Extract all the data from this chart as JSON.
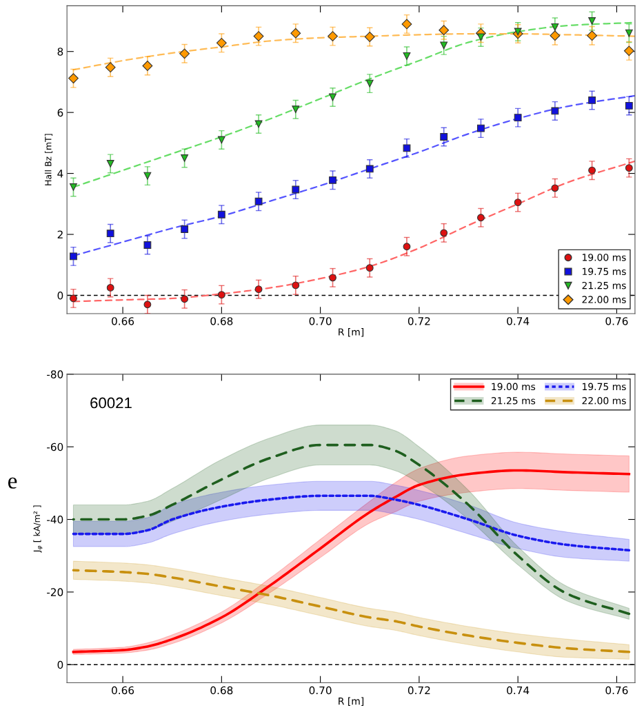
{
  "chart_data": [
    {
      "type": "scatter",
      "xlabel": "R [m]",
      "ylabel": "Hall Bz [mT]",
      "xlim": [
        0.6487,
        0.7637
      ],
      "xticks": [
        {
          "value": 0.66,
          "label": "0.66"
        },
        {
          "value": 0.68,
          "label": "0.68"
        },
        {
          "value": 0.7,
          "label": "0.70"
        },
        {
          "value": 0.72,
          "label": "0.72"
        },
        {
          "value": 0.74,
          "label": "0.74"
        },
        {
          "value": 0.76,
          "label": "0.76"
        }
      ],
      "ylim": [
        -0.6,
        9.5
      ],
      "yticks": [
        0,
        2,
        4,
        6,
        8
      ],
      "legend": "bottom right",
      "grid": false,
      "x": [
        0.65,
        0.6575,
        0.665,
        0.6725,
        0.68,
        0.6875,
        0.695,
        0.7025,
        0.71,
        0.7175,
        0.725,
        0.7325,
        0.74,
        0.7475,
        0.755,
        0.7625
      ],
      "ref_lines": [
        {
          "axis": "y",
          "value": 0,
          "label": null,
          "color": "#000000",
          "line_style": "dashed"
        }
      ],
      "series": [
        {
          "name": "19.00 ms",
          "color": "#dd1111",
          "marker": "circle",
          "values": [
            -0.1,
            0.25,
            -0.3,
            -0.12,
            0.02,
            0.2,
            0.33,
            0.58,
            0.9,
            1.6,
            2.05,
            2.55,
            3.05,
            3.52,
            4.1,
            4.18
          ],
          "errors": [
            0.3,
            0.3,
            0.3,
            0.3,
            0.3,
            0.3,
            0.3,
            0.3,
            0.3,
            0.3,
            0.3,
            0.3,
            0.3,
            0.3,
            0.3,
            0.3
          ]
        },
        {
          "name": "19.75 ms",
          "color": "#1111dd",
          "marker": "square",
          "values": [
            1.28,
            2.03,
            1.65,
            2.17,
            2.65,
            3.08,
            3.47,
            3.78,
            4.15,
            4.83,
            5.2,
            5.48,
            5.83,
            6.05,
            6.4,
            6.22
          ],
          "errors": [
            0.3,
            0.3,
            0.3,
            0.3,
            0.3,
            0.3,
            0.3,
            0.3,
            0.3,
            0.3,
            0.3,
            0.3,
            0.3,
            0.3,
            0.3,
            0.3
          ]
        },
        {
          "name": "21.25 ms",
          "color": "#22bb22",
          "marker": "triangle",
          "values": [
            3.55,
            4.32,
            3.92,
            4.5,
            5.1,
            5.62,
            6.1,
            6.5,
            6.95,
            7.85,
            8.2,
            8.47,
            8.65,
            8.8,
            9.0,
            8.6
          ],
          "errors": [
            0.3,
            0.3,
            0.3,
            0.3,
            0.3,
            0.3,
            0.3,
            0.3,
            0.3,
            0.3,
            0.3,
            0.3,
            0.3,
            0.3,
            0.3,
            0.3
          ]
        },
        {
          "name": "22.00 ms",
          "color": "#ff9900",
          "marker": "diamond",
          "values": [
            7.12,
            7.48,
            7.53,
            7.93,
            8.28,
            8.5,
            8.6,
            8.5,
            8.48,
            8.9,
            8.7,
            8.6,
            8.58,
            8.52,
            8.52,
            8.02
          ],
          "errors": [
            0.3,
            0.3,
            0.3,
            0.3,
            0.3,
            0.3,
            0.3,
            0.3,
            0.3,
            0.3,
            0.3,
            0.3,
            0.3,
            0.3,
            0.3,
            0.3
          ]
        },
        {
          "type": "line",
          "color": "#ff6666",
          "line_style": "dashed",
          "x": [
            0.65,
            0.66,
            0.67,
            0.68,
            0.69,
            0.7,
            0.71,
            0.72,
            0.73,
            0.74,
            0.75,
            0.7637
          ],
          "values": [
            -0.2,
            -0.15,
            -0.1,
            0.05,
            0.25,
            0.55,
            0.95,
            1.55,
            2.3,
            3.0,
            3.7,
            4.4
          ]
        },
        {
          "type": "line",
          "color": "#5555ff",
          "line_style": "dashed",
          "x": [
            0.65,
            0.66,
            0.67,
            0.68,
            0.69,
            0.7,
            0.71,
            0.72,
            0.73,
            0.74,
            0.75,
            0.7637
          ],
          "values": [
            1.3,
            1.75,
            2.2,
            2.6,
            3.1,
            3.6,
            4.15,
            4.7,
            5.3,
            5.8,
            6.2,
            6.55
          ]
        },
        {
          "type": "line",
          "color": "#66dd66",
          "line_style": "dashed",
          "x": [
            0.65,
            0.66,
            0.67,
            0.68,
            0.69,
            0.7,
            0.71,
            0.72,
            0.73,
            0.74,
            0.75,
            0.7637
          ],
          "values": [
            3.55,
            4.1,
            4.65,
            5.2,
            5.8,
            6.45,
            7.1,
            7.7,
            8.3,
            8.65,
            8.85,
            8.95
          ]
        },
        {
          "type": "line",
          "color": "#ffbb55",
          "line_style": "dashed",
          "x": [
            0.65,
            0.66,
            0.67,
            0.68,
            0.69,
            0.7,
            0.71,
            0.72,
            0.73,
            0.74,
            0.75,
            0.7637
          ],
          "values": [
            7.4,
            7.7,
            7.95,
            8.15,
            8.35,
            8.45,
            8.5,
            8.55,
            8.58,
            8.58,
            8.55,
            8.5
          ]
        }
      ]
    },
    {
      "type": "line",
      "xlabel": "R [m]",
      "ylabel": "J$_{φ}$ [ kA/m² ]",
      "xlim": [
        0.6487,
        0.7637
      ],
      "xticks": [
        {
          "value": 0.66,
          "label": "0.66"
        },
        {
          "value": 0.68,
          "label": "0.68"
        },
        {
          "value": 0.7,
          "label": "0.70"
        },
        {
          "value": 0.72,
          "label": "0.72"
        },
        {
          "value": 0.74,
          "label": "0.74"
        },
        {
          "value": 0.76,
          "label": "0.76"
        }
      ],
      "ylim": [
        5,
        -80
      ],
      "yticks": [
        0,
        -20,
        -40,
        -60,
        -80
      ],
      "legend": "top right",
      "grid": false,
      "annotations": [
        "60021",
        "e"
      ],
      "x": [
        0.65,
        0.66,
        0.665,
        0.67,
        0.68,
        0.69,
        0.7,
        0.71,
        0.715,
        0.72,
        0.73,
        0.74,
        0.75,
        0.7625
      ],
      "ref_lines": [
        {
          "axis": "y",
          "value": 0,
          "label": null,
          "color": "#000000",
          "line_style": "dashed"
        }
      ],
      "series": [
        {
          "name": "19.00 ms",
          "color": "#ff0000",
          "line_style": "solid",
          "values": [
            -3.5,
            -4,
            -5,
            -7,
            -13,
            -22,
            -32,
            -42,
            -46,
            -49.5,
            -52.5,
            -53.5,
            -53,
            -52.5
          ],
          "lower": [
            -2.8,
            -3.2,
            -4,
            -5.8,
            -11.5,
            -20,
            -29.5,
            -39,
            -42,
            -45,
            -47.5,
            -48.5,
            -48,
            -47.5
          ],
          "upper": [
            -4.2,
            -4.8,
            -6,
            -8.2,
            -14.5,
            -24,
            -34.5,
            -45,
            -50,
            -54,
            -57.5,
            -58.5,
            -58,
            -57.5
          ]
        },
        {
          "name": "19.75 ms",
          "color": "#1a1aee",
          "line_style": "dotted",
          "values": [
            -36,
            -36,
            -37,
            -40,
            -43.5,
            -45.5,
            -46.5,
            -46.5,
            -45.5,
            -44,
            -40,
            -35.5,
            -33,
            -31.5
          ],
          "lower": [
            -32.5,
            -32.5,
            -33.5,
            -36,
            -39.5,
            -41.5,
            -42.5,
            -42.5,
            -41.5,
            -40,
            -36,
            -32,
            -29.5,
            -28.5
          ],
          "upper": [
            -39.5,
            -39.5,
            -40.5,
            -44,
            -47.5,
            -49.5,
            -50.5,
            -50.5,
            -49.5,
            -48,
            -44,
            -39,
            -36.5,
            -34.5
          ]
        },
        {
          "name": "21.25 ms",
          "color": "#1f5f1f",
          "line_style": "dashed",
          "values": [
            -40,
            -40,
            -41,
            -44,
            -51,
            -57,
            -60.5,
            -60.5,
            -59,
            -55,
            -44,
            -30,
            -19.5,
            -14
          ],
          "lower": [
            -36,
            -36,
            -37,
            -39.5,
            -45.5,
            -51.5,
            -55,
            -55,
            -53.5,
            -50,
            -40,
            -27.5,
            -17.5,
            -12.5
          ],
          "upper": [
            -44,
            -44,
            -45,
            -48.5,
            -56.5,
            -62.5,
            -66,
            -66,
            -64.5,
            -60,
            -48,
            -32.5,
            -21.5,
            -15.5
          ]
        },
        {
          "name": "22.00 ms",
          "color": "#c8900f",
          "line_style": "dashed",
          "values": [
            -26,
            -25.5,
            -25,
            -24,
            -21.5,
            -19,
            -16,
            -13,
            -12,
            -10.5,
            -8,
            -6,
            -4.5,
            -3.5
          ],
          "lower": [
            -23.5,
            -23,
            -22.5,
            -21.5,
            -19,
            -16.5,
            -13.5,
            -10.5,
            -9.5,
            -8,
            -5.5,
            -3.5,
            -2,
            -1.5
          ],
          "upper": [
            -28.5,
            -28,
            -27.5,
            -26.5,
            -24,
            -21.5,
            -18.5,
            -15.5,
            -14.5,
            -13,
            -10.5,
            -8.5,
            -7,
            -5.5
          ]
        }
      ]
    }
  ]
}
